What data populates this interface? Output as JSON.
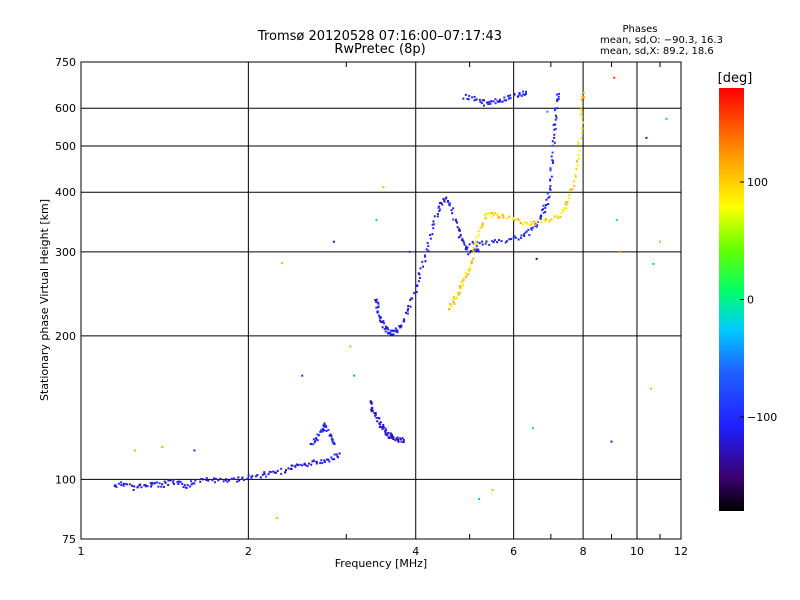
{
  "chart_data": {
    "type": "scatter",
    "title": "Tromsø 20120528 07:16:00–07:17:43",
    "subtitle": "RwPretec (8p)",
    "xlabel": "Frequency [MHz]",
    "ylabel": "Stationary phase Virtual Height [km]",
    "x_scale": "log",
    "y_scale": "log",
    "xlim": [
      1,
      12
    ],
    "ylim": [
      75,
      750
    ],
    "grid": true,
    "x_ticks": [
      1,
      2,
      4,
      6,
      8,
      10,
      12
    ],
    "x_tick_labels": [
      "1",
      "2",
      "4",
      "6",
      "8",
      "10",
      "12"
    ],
    "y_ticks": [
      75,
      100,
      200,
      300,
      400,
      500,
      600,
      750
    ],
    "y_tick_labels": [
      "75",
      "100",
      "200",
      "300",
      "400",
      "500",
      "600",
      "750"
    ],
    "phases": {
      "heading": "Phases",
      "line_o": "mean, sd,O: −90.3, 16.3",
      "line_x": "mean, sd,X:  89.2, 18.6"
    },
    "colorbar": {
      "label": "[deg]",
      "min": -180,
      "max": 180,
      "ticks": [
        100,
        0,
        -100
      ],
      "tick_labels": [
        "100",
        "0",
        "−100"
      ]
    },
    "series": [
      {
        "key": "E",
        "phase": -110,
        "points": [
          [
            1.15,
            97
          ],
          [
            1.2,
            98
          ],
          [
            1.25,
            96
          ],
          [
            1.3,
            97
          ],
          [
            1.35,
            98
          ],
          [
            1.4,
            97
          ],
          [
            1.45,
            99
          ],
          [
            1.5,
            98
          ],
          [
            1.55,
            97
          ],
          [
            1.6,
            99
          ],
          [
            1.7,
            100
          ],
          [
            1.8,
            99
          ],
          [
            1.9,
            100
          ],
          [
            2.0,
            101
          ],
          [
            2.1,
            102
          ],
          [
            2.2,
            103
          ],
          [
            2.3,
            104
          ],
          [
            2.4,
            106
          ],
          [
            2.5,
            107
          ],
          [
            2.6,
            108
          ],
          [
            2.7,
            109
          ],
          [
            2.8,
            110
          ],
          [
            2.9,
            112
          ]
        ]
      },
      {
        "key": "Es-high",
        "phase": -100,
        "points": [
          [
            2.6,
            118
          ],
          [
            2.65,
            122
          ],
          [
            2.7,
            126
          ],
          [
            2.75,
            130
          ],
          [
            2.8,
            124
          ],
          [
            2.85,
            120
          ]
        ]
      },
      {
        "key": "F1-low",
        "phase": -120,
        "points": [
          [
            3.3,
            145
          ],
          [
            3.35,
            140
          ],
          [
            3.4,
            135
          ],
          [
            3.45,
            130
          ],
          [
            3.5,
            128
          ],
          [
            3.55,
            125
          ],
          [
            3.6,
            123
          ],
          [
            3.65,
            122
          ],
          [
            3.7,
            121
          ],
          [
            3.8,
            121
          ]
        ]
      },
      {
        "key": "F1",
        "phase": -110,
        "points": [
          [
            3.4,
            240
          ],
          [
            3.42,
            228
          ],
          [
            3.45,
            218
          ],
          [
            3.5,
            210
          ],
          [
            3.55,
            205
          ],
          [
            3.6,
            203
          ],
          [
            3.65,
            203
          ],
          [
            3.7,
            206
          ],
          [
            3.8,
            214
          ],
          [
            3.9,
            230
          ],
          [
            4.0,
            250
          ],
          [
            4.1,
            275
          ],
          [
            4.2,
            305
          ],
          [
            4.3,
            340
          ],
          [
            4.4,
            370
          ],
          [
            4.5,
            388
          ],
          [
            4.6,
            380
          ],
          [
            4.7,
            350
          ],
          [
            4.8,
            325
          ],
          [
            4.9,
            310
          ],
          [
            5.0,
            300
          ],
          [
            5.2,
            302
          ]
        ]
      },
      {
        "key": "F2-O",
        "phase": -105,
        "points": [
          [
            5.0,
            312
          ],
          [
            5.3,
            312
          ],
          [
            5.6,
            315
          ],
          [
            6.0,
            320
          ],
          [
            6.3,
            325
          ],
          [
            6.5,
            335
          ],
          [
            6.7,
            350
          ],
          [
            6.8,
            365
          ],
          [
            6.9,
            385
          ],
          [
            7.0,
            420
          ],
          [
            7.05,
            470
          ],
          [
            7.1,
            530
          ],
          [
            7.15,
            580
          ],
          [
            7.2,
            640
          ]
        ]
      },
      {
        "key": "F2-X",
        "phase": 95,
        "points": [
          [
            4.6,
            228
          ],
          [
            4.7,
            238
          ],
          [
            4.8,
            250
          ],
          [
            4.9,
            262
          ],
          [
            5.0,
            276
          ],
          [
            5.1,
            300
          ],
          [
            5.2,
            330
          ],
          [
            5.35,
            355
          ],
          [
            5.5,
            360
          ],
          [
            5.7,
            355
          ],
          [
            6.0,
            350
          ],
          [
            6.3,
            345
          ],
          [
            6.6,
            345
          ],
          [
            7.0,
            348
          ],
          [
            7.3,
            360
          ],
          [
            7.5,
            380
          ],
          [
            7.7,
            420
          ],
          [
            7.85,
            480
          ],
          [
            7.95,
            560
          ],
          [
            8.0,
            640
          ]
        ]
      },
      {
        "key": "multi",
        "phase": -105,
        "points": [
          [
            4.9,
            635
          ],
          [
            5.1,
            628
          ],
          [
            5.3,
            615
          ],
          [
            5.5,
            620
          ],
          [
            5.7,
            625
          ],
          [
            5.9,
            635
          ],
          [
            6.1,
            640
          ],
          [
            6.3,
            645
          ]
        ]
      },
      {
        "key": "scatter",
        "phase": 0,
        "points": [
          [
            1.25,
            115,
            110
          ],
          [
            1.4,
            117,
            120
          ],
          [
            1.6,
            115,
            -95
          ],
          [
            2.25,
            83,
            110
          ],
          [
            2.3,
            284,
            110
          ],
          [
            2.5,
            165,
            -100
          ],
          [
            2.85,
            315,
            -140
          ],
          [
            3.05,
            190,
            110
          ],
          [
            3.1,
            165,
            -40
          ],
          [
            3.4,
            350,
            -30
          ],
          [
            3.5,
            410,
            110
          ],
          [
            3.9,
            300,
            -95
          ],
          [
            5.2,
            91,
            -30
          ],
          [
            5.5,
            95,
            110
          ],
          [
            6.5,
            128,
            -20
          ],
          [
            6.6,
            290,
            -150
          ],
          [
            6.9,
            590,
            -40
          ],
          [
            9.0,
            120,
            -130
          ],
          [
            9.1,
            695,
            160
          ],
          [
            9.2,
            350,
            -10
          ],
          [
            9.3,
            300,
            130
          ],
          [
            10.4,
            520,
            -130
          ],
          [
            10.6,
            155,
            110
          ],
          [
            10.7,
            283,
            -30
          ],
          [
            11.0,
            315,
            110
          ],
          [
            11.3,
            570,
            -30
          ]
        ]
      }
    ]
  }
}
